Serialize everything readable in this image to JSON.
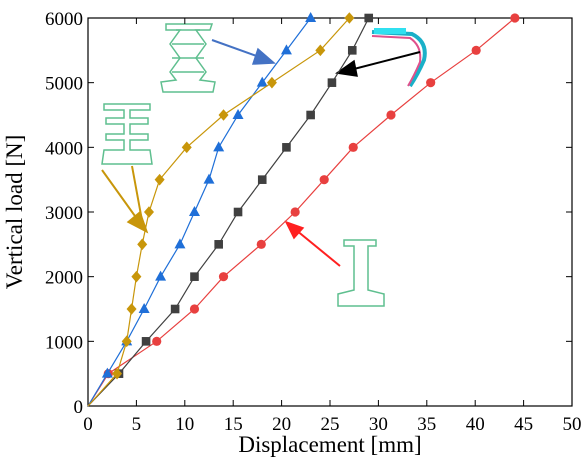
{
  "chart_data": {
    "type": "line",
    "x_label": "Displacement [mm]",
    "y_label": "Vertical load [N]",
    "xlim": [
      0,
      50
    ],
    "ylim": [
      0,
      6000
    ],
    "xticks": [
      0,
      5,
      10,
      15,
      20,
      25,
      30,
      35,
      40,
      45,
      50
    ],
    "yticks": [
      0,
      1000,
      2000,
      3000,
      4000,
      5000,
      6000
    ],
    "grid": false,
    "series": [
      {
        "color": "#e8403f",
        "marker": "circle",
        "x": [
          0,
          2.1,
          7.1,
          11,
          14,
          17.9,
          21.4,
          24.4,
          27.4,
          31.3,
          35.4,
          40.1,
          44.1
        ],
        "values": [
          0,
          500,
          1000,
          1500,
          2000,
          2500,
          3000,
          3500,
          4000,
          4500,
          5000,
          5500,
          6000
        ]
      },
      {
        "color": "#404040",
        "marker": "square",
        "x": [
          0,
          3.2,
          6,
          9,
          11,
          13.5,
          15.5,
          18,
          20.5,
          23,
          25.2,
          27.3,
          29
        ],
        "values": [
          0,
          500,
          1000,
          1500,
          2000,
          2500,
          3000,
          3500,
          4000,
          4500,
          5000,
          5500,
          6000
        ]
      },
      {
        "color": "#1f6fd8",
        "marker": "triangle",
        "x": [
          0,
          2,
          4,
          5.8,
          7.5,
          9.5,
          11,
          12.5,
          13.5,
          15.5,
          18,
          20.5,
          23
        ],
        "values": [
          0,
          500,
          1000,
          1500,
          2000,
          2500,
          3000,
          3500,
          4000,
          4500,
          5000,
          5500,
          6000
        ]
      },
      {
        "color": "#c8960a",
        "marker": "diamond",
        "x": [
          0,
          3,
          4,
          4.5,
          5,
          5.6,
          6.3,
          7.4,
          10.2,
          14,
          19,
          24,
          27
        ],
        "values": [
          0,
          500,
          1000,
          1500,
          2000,
          2500,
          3000,
          3500,
          4000,
          4500,
          5000,
          5500,
          6000
        ]
      }
    ]
  }
}
